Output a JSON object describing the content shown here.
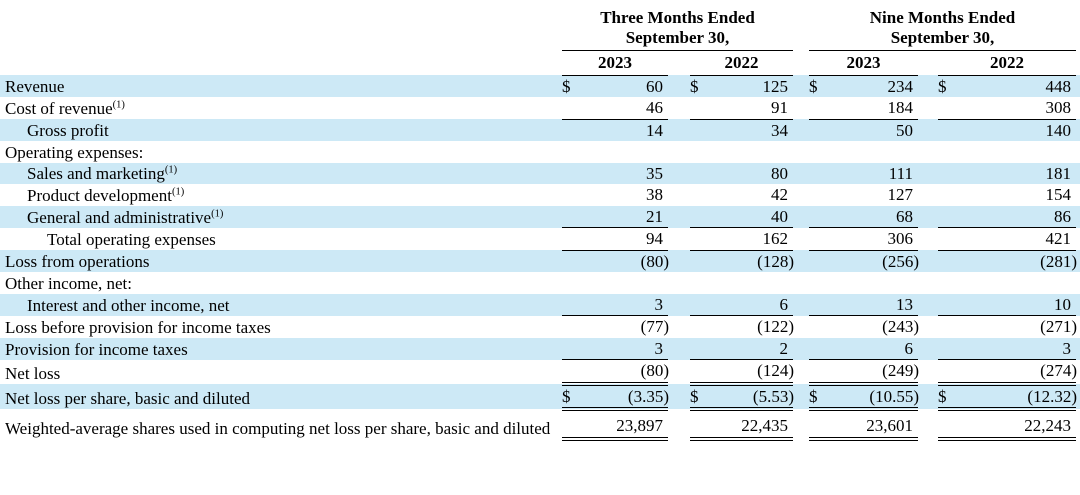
{
  "colors": {
    "highlight": "#cde9f6",
    "rule": "#000000",
    "text": "#000000"
  },
  "table": {
    "currency_symbol": "$",
    "col_groups": [
      {
        "title": "Three Months Ended September 30,",
        "years": [
          "2023",
          "2022"
        ]
      },
      {
        "title": "Nine Months Ended September 30,",
        "years": [
          "2023",
          "2022"
        ]
      }
    ],
    "rows": [
      {
        "label": "Revenue",
        "footnote": "",
        "indent": 0,
        "shaded": true,
        "currency": true,
        "rule": "none",
        "values": [
          "60",
          "125",
          "234",
          "448"
        ]
      },
      {
        "label": "Cost of revenue",
        "footnote": "(1)",
        "indent": 0,
        "shaded": false,
        "currency": false,
        "rule": "single",
        "values": [
          "46",
          "91",
          "184",
          "308"
        ]
      },
      {
        "label": "Gross profit",
        "footnote": "",
        "indent": 1,
        "shaded": true,
        "currency": false,
        "rule": "none",
        "values": [
          "14",
          "34",
          "50",
          "140"
        ]
      },
      {
        "label": "Operating expenses:",
        "footnote": "",
        "indent": 0,
        "shaded": false,
        "currency": false,
        "rule": "none",
        "values": []
      },
      {
        "label": "Sales and marketing",
        "footnote": "(1)",
        "indent": 1,
        "shaded": true,
        "currency": false,
        "rule": "none",
        "values": [
          "35",
          "80",
          "111",
          "181"
        ]
      },
      {
        "label": "Product development",
        "footnote": "(1)",
        "indent": 1,
        "shaded": false,
        "currency": false,
        "rule": "none",
        "values": [
          "38",
          "42",
          "127",
          "154"
        ]
      },
      {
        "label": "General and administrative",
        "footnote": "(1)",
        "indent": 1,
        "shaded": true,
        "currency": false,
        "rule": "single",
        "values": [
          "21",
          "40",
          "68",
          "86"
        ]
      },
      {
        "label": "Total operating expenses",
        "footnote": "",
        "indent": 2,
        "shaded": false,
        "currency": false,
        "rule": "single",
        "values": [
          "94",
          "162",
          "306",
          "421"
        ]
      },
      {
        "label": "Loss from operations",
        "footnote": "",
        "indent": 0,
        "shaded": true,
        "currency": false,
        "rule": "none",
        "values": [
          "(80)",
          "(128)",
          "(256)",
          "(281)"
        ]
      },
      {
        "label": "Other income, net:",
        "footnote": "",
        "indent": 0,
        "shaded": false,
        "currency": false,
        "rule": "none",
        "values": []
      },
      {
        "label": "Interest and other income, net",
        "footnote": "",
        "indent": 1,
        "shaded": true,
        "currency": false,
        "rule": "single",
        "values": [
          "3",
          "6",
          "13",
          "10"
        ]
      },
      {
        "label": "Loss before provision for income taxes",
        "footnote": "",
        "indent": 0,
        "shaded": false,
        "currency": false,
        "rule": "none",
        "values": [
          "(77)",
          "(122)",
          "(243)",
          "(271)"
        ]
      },
      {
        "label": "Provision for income taxes",
        "footnote": "",
        "indent": 0,
        "shaded": true,
        "currency": false,
        "rule": "single",
        "values": [
          "3",
          "2",
          "6",
          "3"
        ]
      },
      {
        "label": "Net loss",
        "footnote": "",
        "indent": 0,
        "shaded": false,
        "currency": false,
        "rule": "double",
        "values": [
          "(80)",
          "(124)",
          "(249)",
          "(274)"
        ]
      },
      {
        "label": "Net loss per share, basic and diluted",
        "footnote": "",
        "indent": 0,
        "shaded": true,
        "currency": true,
        "rule": "double",
        "values": [
          "(3.35)",
          "(5.53)",
          "(10.55)",
          "(12.32)"
        ]
      },
      {
        "label": "Weighted-average shares used in computing net loss per share, basic and diluted",
        "footnote": "",
        "indent": 0,
        "shaded": false,
        "currency": false,
        "rule": "double",
        "values": [
          "23,897",
          "22,435",
          "23,601",
          "22,243"
        ],
        "tall": true
      }
    ]
  }
}
